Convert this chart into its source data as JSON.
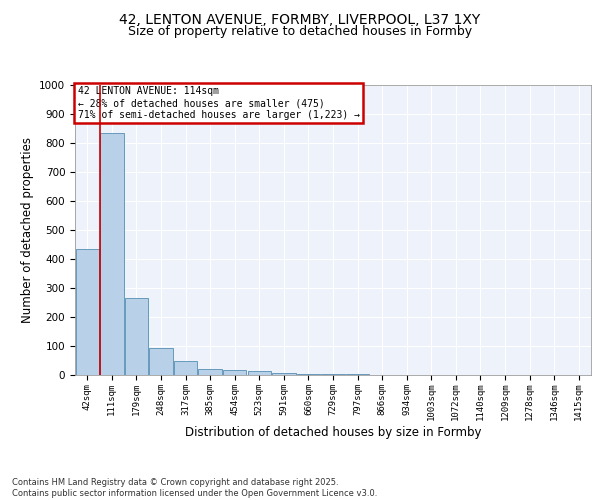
{
  "title_line1": "42, LENTON AVENUE, FORMBY, LIVERPOOL, L37 1XY",
  "title_line2": "Size of property relative to detached houses in Formby",
  "xlabel": "Distribution of detached houses by size in Formby",
  "ylabel": "Number of detached properties",
  "categories": [
    "42sqm",
    "111sqm",
    "179sqm",
    "248sqm",
    "317sqm",
    "385sqm",
    "454sqm",
    "523sqm",
    "591sqm",
    "660sqm",
    "729sqm",
    "797sqm",
    "866sqm",
    "934sqm",
    "1003sqm",
    "1072sqm",
    "1140sqm",
    "1209sqm",
    "1278sqm",
    "1346sqm",
    "1415sqm"
  ],
  "values": [
    435,
    835,
    265,
    93,
    47,
    22,
    18,
    13,
    8,
    5,
    3,
    2,
    1.5,
    1,
    0.8,
    0.6,
    0.5,
    0.4,
    0.3,
    0.2,
    0.15
  ],
  "bar_color": "#b8d0e8",
  "bar_edge_color": "#6699bb",
  "annotation_text": "42 LENTON AVENUE: 114sqm\n← 28% of detached houses are smaller (475)\n71% of semi-detached houses are larger (1,223) →",
  "annotation_box_color": "#cc0000",
  "vline_color": "#cc0000",
  "ylim": [
    0,
    1000
  ],
  "yticks": [
    0,
    100,
    200,
    300,
    400,
    500,
    600,
    700,
    800,
    900,
    1000
  ],
  "bg_color": "#eef2fa",
  "grid_color": "#ffffff",
  "footer_text": "Contains HM Land Registry data © Crown copyright and database right 2025.\nContains public sector information licensed under the Open Government Licence v3.0.",
  "title_fontsize": 10,
  "subtitle_fontsize": 9
}
